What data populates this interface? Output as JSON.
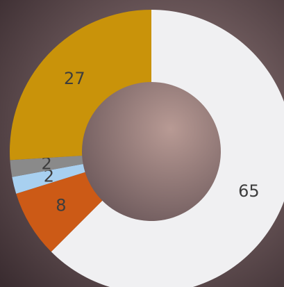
{
  "chart_data": {
    "type": "donut",
    "values": [
      65,
      8,
      2,
      2,
      27
    ],
    "colors": [
      "#f0f0f2",
      "#cc5a16",
      "#a8d0f0",
      "#8a8a8a",
      "#c9930a"
    ]
  }
}
